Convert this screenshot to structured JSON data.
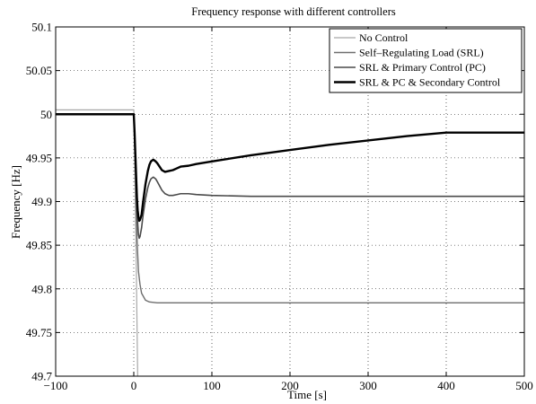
{
  "chart_data": {
    "type": "line",
    "title": "Frequency response with different controllers",
    "xlabel": "Time [s]",
    "ylabel": "Frequency [Hz]",
    "xlim": [
      -100,
      500
    ],
    "ylim": [
      49.7,
      50.1
    ],
    "xticks": [
      -100,
      0,
      100,
      200,
      300,
      400,
      500
    ],
    "yticks": [
      49.7,
      49.75,
      49.8,
      49.85,
      49.9,
      49.95,
      50,
      50.05,
      50.1
    ],
    "xtick_labels": [
      "−100",
      "0",
      "100",
      "200",
      "300",
      "400",
      "500"
    ],
    "ytick_labels": [
      "49.7",
      "49.75",
      "49.8",
      "49.85",
      "49.9",
      "49.95",
      "50",
      "50.05",
      "50.1"
    ],
    "grid": true,
    "legend_position": "top-right",
    "series": [
      {
        "name": "No Control",
        "color": "#a8a8a8",
        "width": 1.2,
        "x": [
          -100,
          0,
          0.5,
          1,
          2,
          3,
          4,
          5
        ],
        "y": [
          50.005,
          50.005,
          49.99,
          49.96,
          49.9,
          49.84,
          49.77,
          49.7
        ]
      },
      {
        "name": "Self–Regulating Load (SRL)",
        "color": "#6e6e6e",
        "width": 1.4,
        "x": [
          -100,
          0,
          1,
          2,
          3,
          4,
          5,
          6,
          8,
          10,
          15,
          20,
          30,
          50,
          100,
          500
        ],
        "y": [
          50.0,
          50.0,
          49.97,
          49.93,
          49.89,
          49.86,
          49.84,
          49.82,
          49.805,
          49.795,
          49.787,
          49.785,
          49.784,
          49.784,
          49.784,
          49.784
        ]
      },
      {
        "name": "SRL & Primary Control (PC)",
        "color": "#4a4a4a",
        "width": 1.6,
        "x": [
          -100,
          0,
          1,
          2,
          3,
          4,
          5,
          6,
          7,
          8,
          10,
          12,
          15,
          18,
          20,
          22,
          25,
          28,
          30,
          33,
          36,
          40,
          45,
          50,
          55,
          60,
          65,
          70,
          80,
          100,
          150,
          500
        ],
        "y": [
          50.0,
          50.0,
          49.98,
          49.95,
          49.92,
          49.895,
          49.875,
          49.862,
          49.858,
          49.86,
          49.87,
          49.885,
          49.903,
          49.916,
          49.922,
          49.926,
          49.928,
          49.926,
          49.923,
          49.918,
          49.913,
          49.909,
          49.907,
          49.907,
          49.908,
          49.909,
          49.909,
          49.909,
          49.908,
          49.907,
          49.906,
          49.906
        ]
      },
      {
        "name": "SRL & PC & Secondary Control",
        "color": "#000000",
        "width": 2.4,
        "x": [
          -100,
          0,
          1,
          2,
          3,
          4,
          5,
          6,
          7,
          8,
          10,
          12,
          15,
          18,
          20,
          22,
          25,
          28,
          30,
          33,
          36,
          40,
          45,
          50,
          55,
          60,
          70,
          80,
          100,
          150,
          200,
          250,
          300,
          350,
          400,
          450,
          500
        ],
        "y": [
          50.0,
          50.0,
          49.98,
          49.955,
          49.93,
          49.905,
          49.89,
          49.882,
          49.878,
          49.879,
          49.885,
          49.9,
          49.92,
          49.935,
          49.942,
          49.946,
          49.948,
          49.946,
          49.944,
          49.94,
          49.936,
          49.934,
          49.935,
          49.936,
          49.938,
          49.94,
          49.941,
          49.943,
          49.946,
          49.953,
          49.959,
          49.965,
          49.97,
          49.975,
          49.979,
          49.979,
          49.979
        ]
      }
    ]
  }
}
